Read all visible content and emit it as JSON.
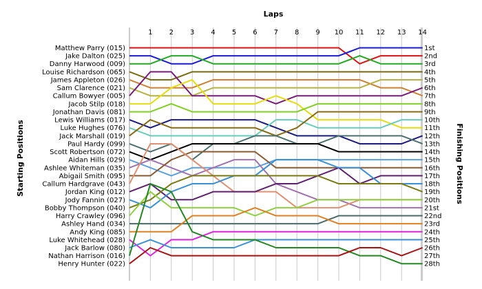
{
  "chart_data": {
    "type": "line",
    "title": "Laps",
    "ylabel_left": "Starting Positions",
    "ylabel_right": "Finishing Positions",
    "x": [
      1,
      2,
      3,
      4,
      5,
      6,
      7,
      8,
      9,
      10,
      11,
      12,
      13,
      14
    ],
    "start_labels": [
      "Matthew Parry (015)",
      "Jake Dalton (025)",
      "Danny Harwood (009)",
      "Louise Richardson (065)",
      "James Appleton (026)",
      "Sam Clarence (021)",
      "Callum Bowyer (005)",
      "Jacob Stilp (018)",
      "Jonathan Davis (081)",
      "Lewis Williams (017)",
      "Luke Hughes (076)",
      "Jack Marshall (019)",
      "Paul Hardy (099)",
      "Scott Robertson (072)",
      "Aidan Hills (029)",
      "Ashlee Whiteman (035)",
      "Abigail Smith (095)",
      "Callum Hardgrave (043)",
      "Jordan King (012)",
      "Jody Fannin (027)",
      "Bobby Thompson (040)",
      "Harry Crawley (096)",
      "Ashley Hand (034)",
      "Andy King (085)",
      "Luke Whitehead (028)",
      "Jack Barlow (080)",
      "Nathan Harrison (016)",
      "Henry Hunter (022)"
    ],
    "finish_labels": [
      "1st",
      "2nd",
      "3rd",
      "4th",
      "5th",
      "6th",
      "7th",
      "8th",
      "9th",
      "10th",
      "11th",
      "12th",
      "13th",
      "14th",
      "15th",
      "16th",
      "17th",
      "18th",
      "19th",
      "20th",
      "21st",
      "22nd",
      "23rd",
      "24th",
      "25th",
      "26th",
      "27th",
      "28th"
    ],
    "series": [
      {
        "color": "#dd1111",
        "start": 1,
        "positions": [
          1,
          1,
          1,
          1,
          1,
          1,
          1,
          1,
          1,
          1,
          3,
          2,
          2,
          2
        ]
      },
      {
        "color": "#1a1ad8",
        "start": 2,
        "positions": [
          2,
          3,
          3,
          2,
          2,
          2,
          2,
          2,
          2,
          2,
          1,
          1,
          1,
          1
        ]
      },
      {
        "color": "#22aa22",
        "start": 3,
        "positions": [
          3,
          2,
          2,
          3,
          3,
          3,
          3,
          3,
          3,
          3,
          2,
          3,
          3,
          3
        ]
      },
      {
        "color": "#7a6a10",
        "start": 4,
        "positions": [
          5,
          5,
          4,
          4,
          4,
          4,
          4,
          4,
          4,
          4,
          4,
          4,
          4,
          4
        ]
      },
      {
        "color": "#d08030",
        "start": 5,
        "positions": [
          6,
          6,
          6,
          5,
          5,
          5,
          5,
          5,
          5,
          5,
          5,
          6,
          6,
          7
        ]
      },
      {
        "color": "#b8b040",
        "start": 6,
        "positions": [
          7,
          7,
          7,
          6,
          6,
          6,
          6,
          6,
          6,
          6,
          6,
          5,
          5,
          5
        ]
      },
      {
        "color": "#7a1a7a",
        "start": 7,
        "positions": [
          4,
          4,
          7,
          7,
          7,
          7,
          8,
          7,
          7,
          7,
          7,
          7,
          7,
          6
        ]
      },
      {
        "color": "#e6dc10",
        "start": 8,
        "positions": [
          8,
          6,
          5,
          8,
          8,
          8,
          7,
          8,
          10,
          10,
          10,
          10,
          11,
          11
        ]
      },
      {
        "color": "#80d020",
        "start": 9,
        "positions": [
          9,
          8,
          9,
          9,
          9,
          9,
          9,
          9,
          8,
          8,
          8,
          8,
          8,
          8
        ]
      },
      {
        "color": "#1a1a80",
        "start": 10,
        "positions": [
          11,
          10,
          10,
          10,
          10,
          10,
          11,
          12,
          12,
          12,
          13,
          13,
          13,
          12
        ]
      },
      {
        "color": "#66ccbb",
        "start": 11,
        "positions": [
          12,
          12,
          12,
          12,
          12,
          12,
          10,
          10,
          11,
          11,
          11,
          11,
          10,
          10
        ]
      },
      {
        "color": "#8a6a10",
        "start": 12,
        "positions": [
          10,
          11,
          11,
          11,
          11,
          11,
          12,
          11,
          9,
          9,
          9,
          9,
          9,
          9
        ]
      },
      {
        "color": "#4a7070",
        "start": 13,
        "positions": [
          14,
          13,
          15,
          13,
          13,
          12,
          12,
          13,
          13,
          12,
          12,
          12,
          12,
          13
        ]
      },
      {
        "color": "#000000",
        "start": 14,
        "positions": [
          15,
          14,
          13,
          13,
          13,
          13,
          13,
          13,
          13,
          14,
          14,
          14,
          14,
          14
        ]
      },
      {
        "color": "#5aa0e0",
        "start": 15,
        "positions": [
          16,
          17,
          16,
          16,
          16,
          16,
          15,
          15,
          15,
          15,
          15,
          15,
          15,
          15
        ]
      },
      {
        "color": "#a070b0",
        "start": 16,
        "positions": [
          15,
          16,
          17,
          16,
          15,
          15,
          18,
          19,
          20,
          20,
          21,
          21,
          21,
          21
        ]
      },
      {
        "color": "#8a5a30",
        "start": 17,
        "positions": [
          17,
          15,
          14,
          14,
          14,
          14,
          16,
          16,
          16,
          16,
          16,
          16,
          16,
          16
        ]
      },
      {
        "color": "#e09070",
        "start": 18,
        "positions": [
          13,
          13,
          15,
          17,
          19,
          19,
          19,
          21,
          21,
          21,
          20,
          20,
          20,
          20
        ]
      },
      {
        "color": "#602070",
        "start": 19,
        "positions": [
          18,
          20,
          20,
          19,
          19,
          19,
          18,
          18,
          17,
          16,
          18,
          17,
          17,
          17
        ]
      },
      {
        "color": "#3a90d8",
        "start": 20,
        "positions": [
          21,
          19,
          18,
          18,
          17,
          17,
          15,
          15,
          15,
          16,
          16,
          18,
          18,
          18
        ]
      },
      {
        "color": "#7a7a10",
        "start": 21,
        "positions": [
          20,
          18,
          17,
          17,
          17,
          17,
          17,
          17,
          17,
          18,
          18,
          18,
          18,
          19
        ]
      },
      {
        "color": "#90d040",
        "start": 22,
        "positions": [
          19,
          21,
          21,
          21,
          21,
          22,
          21,
          21,
          20,
          20,
          20,
          20,
          20,
          20
        ]
      },
      {
        "color": "#4a6a6a",
        "start": 23,
        "positions": [
          23,
          23,
          23,
          23,
          23,
          23,
          23,
          23,
          23,
          22,
          22,
          22,
          22,
          22
        ]
      },
      {
        "color": "#e08020",
        "start": 24,
        "positions": [
          24,
          24,
          22,
          22,
          22,
          21,
          22,
          22,
          22,
          23,
          23,
          23,
          23,
          23
        ]
      },
      {
        "color": "#dd22dd",
        "start": 25,
        "positions": [
          27,
          25,
          25,
          24,
          24,
          24,
          24,
          24,
          24,
          24,
          24,
          24,
          24,
          24
        ]
      },
      {
        "color": "#3a90d8",
        "start": 26,
        "positions": [
          25,
          26,
          26,
          26,
          26,
          25,
          25,
          25,
          25,
          25,
          25,
          25,
          25,
          25
        ]
      },
      {
        "color": "#228822",
        "start": 27,
        "positions": [
          18,
          19,
          24,
          25,
          25,
          25,
          26,
          26,
          26,
          26,
          27,
          27,
          28,
          28
        ]
      },
      {
        "color": "#aa1111",
        "start": 28,
        "positions": [
          26,
          27,
          27,
          27,
          27,
          27,
          27,
          27,
          27,
          27,
          26,
          26,
          27,
          26
        ]
      }
    ],
    "grid": true
  }
}
